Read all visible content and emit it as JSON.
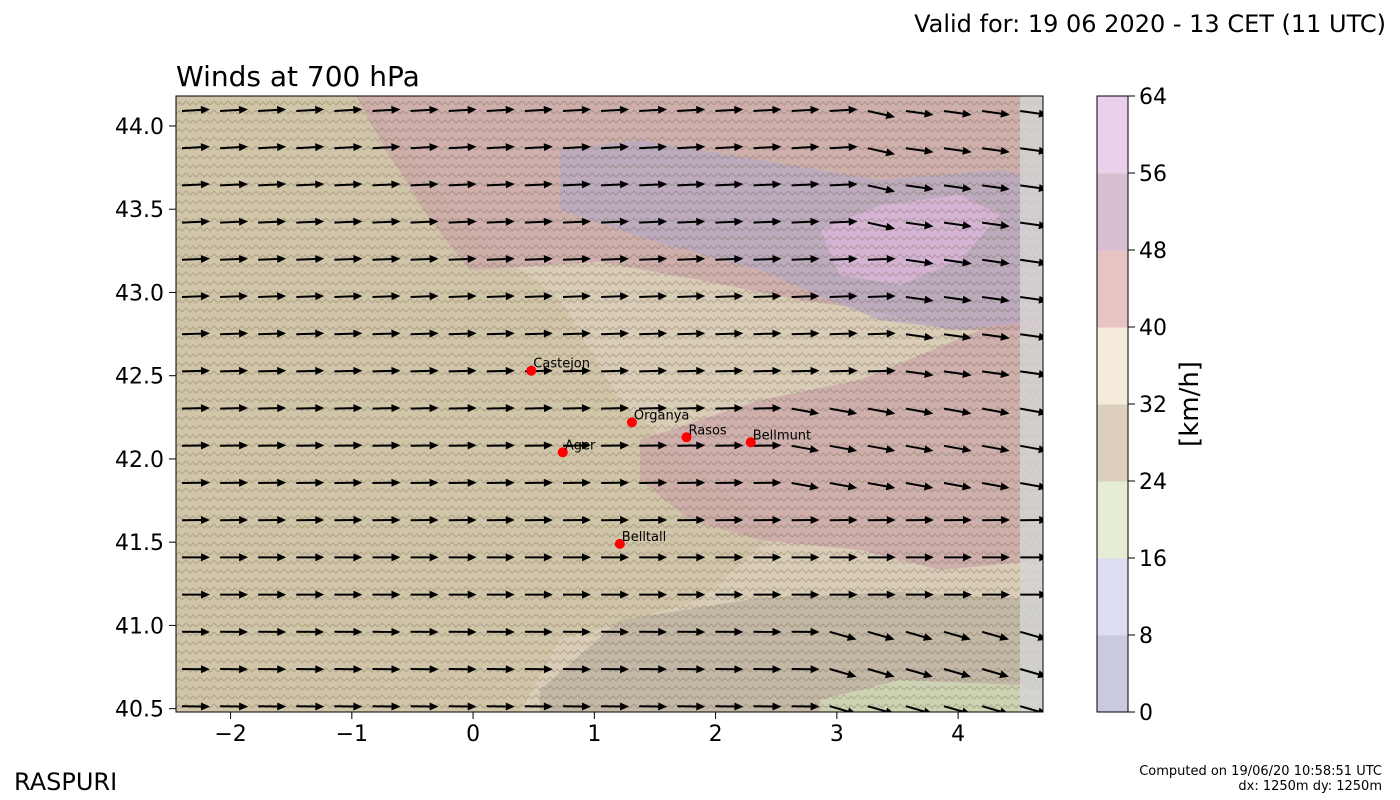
{
  "header": {
    "valid_for": "Valid for: 19 06 2020 - 13 CET (11 UTC)"
  },
  "chart": {
    "title": "Winds at 700 hPa"
  },
  "footer": {
    "brand": "RASPURI",
    "computed_line1": "Computed on 19/06/20 10:58:51 UTC",
    "computed_line2": "dx: 1250m dy: 1250m"
  },
  "colorbar": {
    "label": "[km/h]",
    "ticks": [
      "0",
      "8",
      "16",
      "24",
      "32",
      "40",
      "48",
      "56",
      "64"
    ],
    "colors": [
      "#c9c9e0",
      "#dcdcf2",
      "#e5eed2",
      "#dccfbb",
      "#f5ebdb",
      "#e7c3c3",
      "#d7bfd1",
      "#ecd0eb"
    ]
  },
  "chart_data": {
    "type": "map",
    "xlim": [
      -2.45,
      4.7
    ],
    "ylim": [
      40.48,
      44.18
    ],
    "xticks": [
      -2,
      -1,
      0,
      1,
      2,
      3,
      4
    ],
    "xtick_labels": [
      "−2",
      "−1",
      "0",
      "1",
      "2",
      "3",
      "4"
    ],
    "yticks": [
      40.5,
      41.0,
      41.5,
      42.0,
      42.5,
      43.0,
      43.5,
      44.0
    ],
    "ytick_labels": [
      "40.5",
      "41.0",
      "41.5",
      "42.0",
      "42.5",
      "43.0",
      "43.5",
      "44.0"
    ],
    "places": [
      {
        "name": "Castejon",
        "lon": 0.48,
        "lat": 42.53
      },
      {
        "name": "Organya",
        "lon": 1.31,
        "lat": 42.22
      },
      {
        "name": "Rasos",
        "lon": 1.76,
        "lat": 42.13
      },
      {
        "name": "Bellmunt",
        "lon": 2.29,
        "lat": 42.1
      },
      {
        "name": "Ager",
        "lon": 0.74,
        "lat": 42.04
      },
      {
        "name": "Belltall",
        "lon": 1.21,
        "lat": 41.49
      }
    ],
    "wind_field": {
      "units": "km/h",
      "direction": "from west, turning northwest in the north-east and south-east corners",
      "speed_range": [
        24,
        64
      ]
    }
  }
}
